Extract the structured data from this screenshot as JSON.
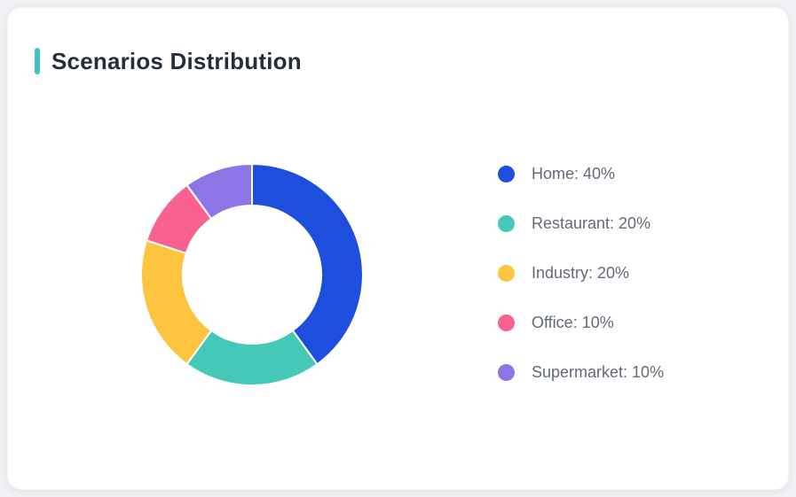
{
  "header": {
    "title": "Scenarios Distribution"
  },
  "colors": {
    "accent_bar": "#3ec5bf",
    "title_text": "#252e3d",
    "legend_text": "#636b77",
    "page_background": "#f0f1f4",
    "card_background": "#ffffff",
    "slice_separator": "#ffffff"
  },
  "chart_data": {
    "type": "pie",
    "variant": "donut",
    "title": "Scenarios Distribution",
    "categories": [
      "Home",
      "Restaurant",
      "Industry",
      "Office",
      "Supermarket"
    ],
    "values": [
      40,
      20,
      20,
      10,
      10
    ],
    "unit": "%",
    "slice_colors": [
      "#1d4edd",
      "#45c8b8",
      "#fdc43f",
      "#f9628e",
      "#8d75e5"
    ],
    "legend_labels": [
      "Home: 40%",
      "Restaurant: 20%",
      "Industry: 20%",
      "Office: 10%",
      "Supermarket: 10%"
    ],
    "start_angle_deg": 0,
    "direction": "clockwise",
    "inner_radius_ratio": 0.62,
    "separator_width": 2,
    "legend_position": "right",
    "grid": false
  }
}
